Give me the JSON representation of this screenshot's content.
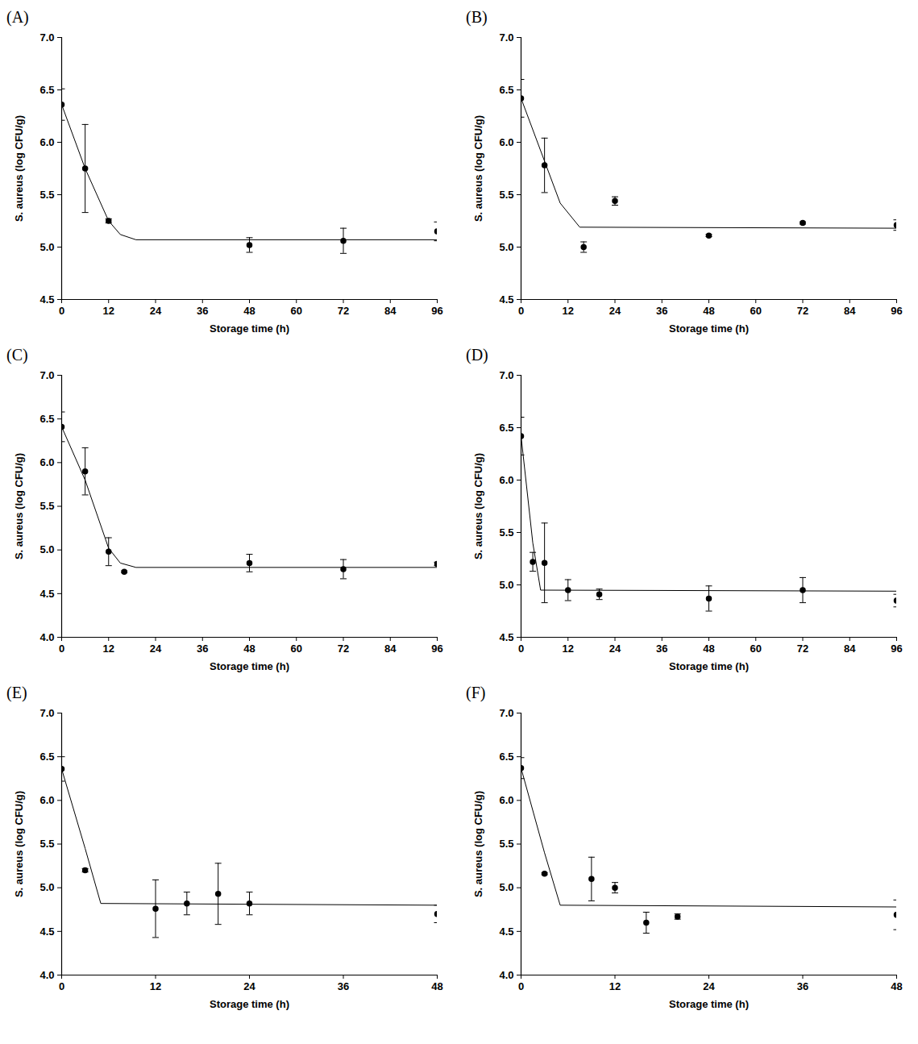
{
  "chart_data": [
    {
      "type": "scatter",
      "title": "(A)",
      "x_label": "Storage time (h)",
      "y_label": "S. aureus (log CFU/g)",
      "xlim": [
        0,
        96
      ],
      "xticks": [
        0,
        12,
        24,
        36,
        48,
        60,
        72,
        84,
        96
      ],
      "ylim": [
        4.5,
        7.0
      ],
      "yticks": [
        4.5,
        {
          "value": 5,
          "label": "5.0"
        },
        5.5,
        {
          "value": 6,
          "label": "6.0"
        },
        6.5,
        {
          "value": 7,
          "label": "7.0"
        }
      ],
      "series": [
        {
          "type": "scatter",
          "marker": "circle",
          "color": "#000000",
          "x": [
            0,
            6,
            12,
            48,
            72,
            96
          ],
          "values": [
            6.36,
            5.75,
            5.25,
            5.02,
            5.06,
            5.15
          ],
          "error": [
            0.15,
            0.42,
            0.02,
            0.07,
            0.12,
            0.09
          ]
        },
        {
          "type": "line",
          "line_style": "solid",
          "color": "#000000",
          "x": [
            0,
            6,
            12,
            15,
            19,
            96
          ],
          "values": [
            6.36,
            5.75,
            5.25,
            5.12,
            5.07,
            5.07
          ]
        }
      ]
    },
    {
      "type": "scatter",
      "title": "(B)",
      "x_label": "Storage time (h)",
      "y_label": "S. aureus (log CFU/g)",
      "xlim": [
        0,
        96
      ],
      "xticks": [
        0,
        12,
        24,
        36,
        48,
        60,
        72,
        84,
        96
      ],
      "ylim": [
        4.5,
        7.0
      ],
      "yticks": [
        4.5,
        {
          "value": 5,
          "label": "5.0"
        },
        5.5,
        {
          "value": 6,
          "label": "6.0"
        },
        6.5,
        {
          "value": 7,
          "label": "7.0"
        }
      ],
      "series": [
        {
          "type": "scatter",
          "marker": "circle",
          "color": "#000000",
          "x": [
            0,
            6,
            16,
            24,
            48,
            72,
            96
          ],
          "values": [
            6.42,
            5.78,
            5.0,
            5.44,
            5.11,
            5.23,
            5.21
          ],
          "error": [
            0.18,
            0.26,
            0.05,
            0.04,
            0.01,
            0.01,
            0.05
          ]
        },
        {
          "type": "line",
          "line_style": "solid",
          "color": "#000000",
          "x": [
            0,
            6,
            10,
            15,
            96
          ],
          "values": [
            6.42,
            5.82,
            5.42,
            5.19,
            5.18
          ]
        }
      ]
    },
    {
      "type": "scatter",
      "title": "(C)",
      "x_label": "Storage time (h)",
      "y_label": "S. aureus (log CFU/g)",
      "xlim": [
        0,
        96
      ],
      "xticks": [
        0,
        12,
        24,
        36,
        48,
        60,
        72,
        84,
        96
      ],
      "ylim": [
        4.0,
        7.0
      ],
      "yticks": [
        {
          "value": 4,
          "label": "4.0"
        },
        4.5,
        {
          "value": 5,
          "label": "5.0"
        },
        5.5,
        {
          "value": 6,
          "label": "6.0"
        },
        6.5,
        {
          "value": 7,
          "label": "7.0"
        }
      ],
      "series": [
        {
          "type": "scatter",
          "marker": "circle",
          "color": "#000000",
          "x": [
            0,
            6,
            12,
            16,
            48,
            72,
            96
          ],
          "values": [
            6.41,
            5.9,
            4.98,
            4.75,
            4.85,
            4.78,
            4.84
          ],
          "error": [
            0.17,
            0.27,
            0.16,
            0.01,
            0.1,
            0.11,
            0.02
          ]
        },
        {
          "type": "line",
          "line_style": "solid",
          "color": "#000000",
          "x": [
            0,
            6,
            12,
            15,
            19,
            96
          ],
          "values": [
            6.41,
            5.8,
            5.02,
            4.85,
            4.8,
            4.8
          ]
        }
      ]
    },
    {
      "type": "scatter",
      "title": "(D)",
      "x_label": "Storage time (h)",
      "y_label": "S. aureus (log CFU/g)",
      "xlim": [
        0,
        96
      ],
      "xticks": [
        0,
        12,
        24,
        36,
        48,
        60,
        72,
        84,
        96
      ],
      "ylim": [
        4.5,
        7.0
      ],
      "yticks": [
        4.5,
        {
          "value": 5,
          "label": "5.0"
        },
        5.5,
        {
          "value": 6,
          "label": "6.0"
        },
        6.5,
        {
          "value": 7,
          "label": "7.0"
        }
      ],
      "series": [
        {
          "type": "scatter",
          "marker": "circle",
          "color": "#000000",
          "x": [
            0,
            3,
            6,
            12,
            20,
            48,
            72,
            96
          ],
          "values": [
            6.42,
            5.22,
            5.21,
            4.95,
            4.91,
            4.87,
            4.95,
            4.85
          ],
          "error": [
            0.18,
            0.09,
            0.38,
            0.1,
            0.05,
            0.12,
            0.12,
            0.06
          ]
        },
        {
          "type": "line",
          "line_style": "solid",
          "color": "#000000",
          "x": [
            0,
            3,
            5,
            96
          ],
          "values": [
            6.42,
            5.4,
            4.95,
            4.94
          ]
        }
      ]
    },
    {
      "type": "scatter",
      "title": "(E)",
      "x_label": "Storage time (h)",
      "y_label": "S. aureus (log CFU/g)",
      "xlim": [
        0,
        48
      ],
      "xticks": [
        0,
        12,
        24,
        36,
        48
      ],
      "ylim": [
        4.0,
        7.0
      ],
      "yticks": [
        {
          "value": 4,
          "label": "4.0"
        },
        4.5,
        {
          "value": 5,
          "label": "5.0"
        },
        5.5,
        {
          "value": 6,
          "label": "6.0"
        },
        6.5,
        {
          "value": 7,
          "label": "7.0"
        }
      ],
      "series": [
        {
          "type": "scatter",
          "marker": "circle",
          "color": "#000000",
          "x": [
            0,
            3,
            12,
            16,
            20,
            24,
            48
          ],
          "values": [
            6.36,
            5.2,
            4.76,
            4.82,
            4.93,
            4.82,
            4.7
          ],
          "error": [
            0.14,
            0.02,
            0.33,
            0.13,
            0.35,
            0.13,
            0.1
          ]
        },
        {
          "type": "line",
          "line_style": "solid",
          "color": "#000000",
          "x": [
            0,
            3,
            5,
            48
          ],
          "values": [
            6.36,
            5.45,
            4.82,
            4.8
          ]
        }
      ]
    },
    {
      "type": "scatter",
      "title": "(F)",
      "x_label": "Storage time (h)",
      "y_label": "S. aureus (log CFU/g)",
      "xlim": [
        0,
        48
      ],
      "xticks": [
        0,
        12,
        24,
        36,
        48
      ],
      "ylim": [
        4.0,
        7.0
      ],
      "yticks": [
        {
          "value": 4,
          "label": "4.0"
        },
        4.5,
        {
          "value": 5,
          "label": "5.0"
        },
        5.5,
        {
          "value": 6,
          "label": "6.0"
        },
        6.5,
        {
          "value": 7,
          "label": "7.0"
        }
      ],
      "series": [
        {
          "type": "scatter",
          "marker": "circle",
          "color": "#000000",
          "x": [
            0,
            3,
            9,
            12,
            16,
            20,
            48
          ],
          "values": [
            6.37,
            5.16,
            5.1,
            5.0,
            4.6,
            4.67,
            4.69
          ],
          "error": [
            0.12,
            0.01,
            0.25,
            0.06,
            0.12,
            0.03,
            0.17
          ]
        },
        {
          "type": "line",
          "line_style": "solid",
          "color": "#000000",
          "x": [
            0,
            3,
            5,
            48
          ],
          "values": [
            6.37,
            5.4,
            4.8,
            4.78
          ]
        }
      ]
    }
  ]
}
